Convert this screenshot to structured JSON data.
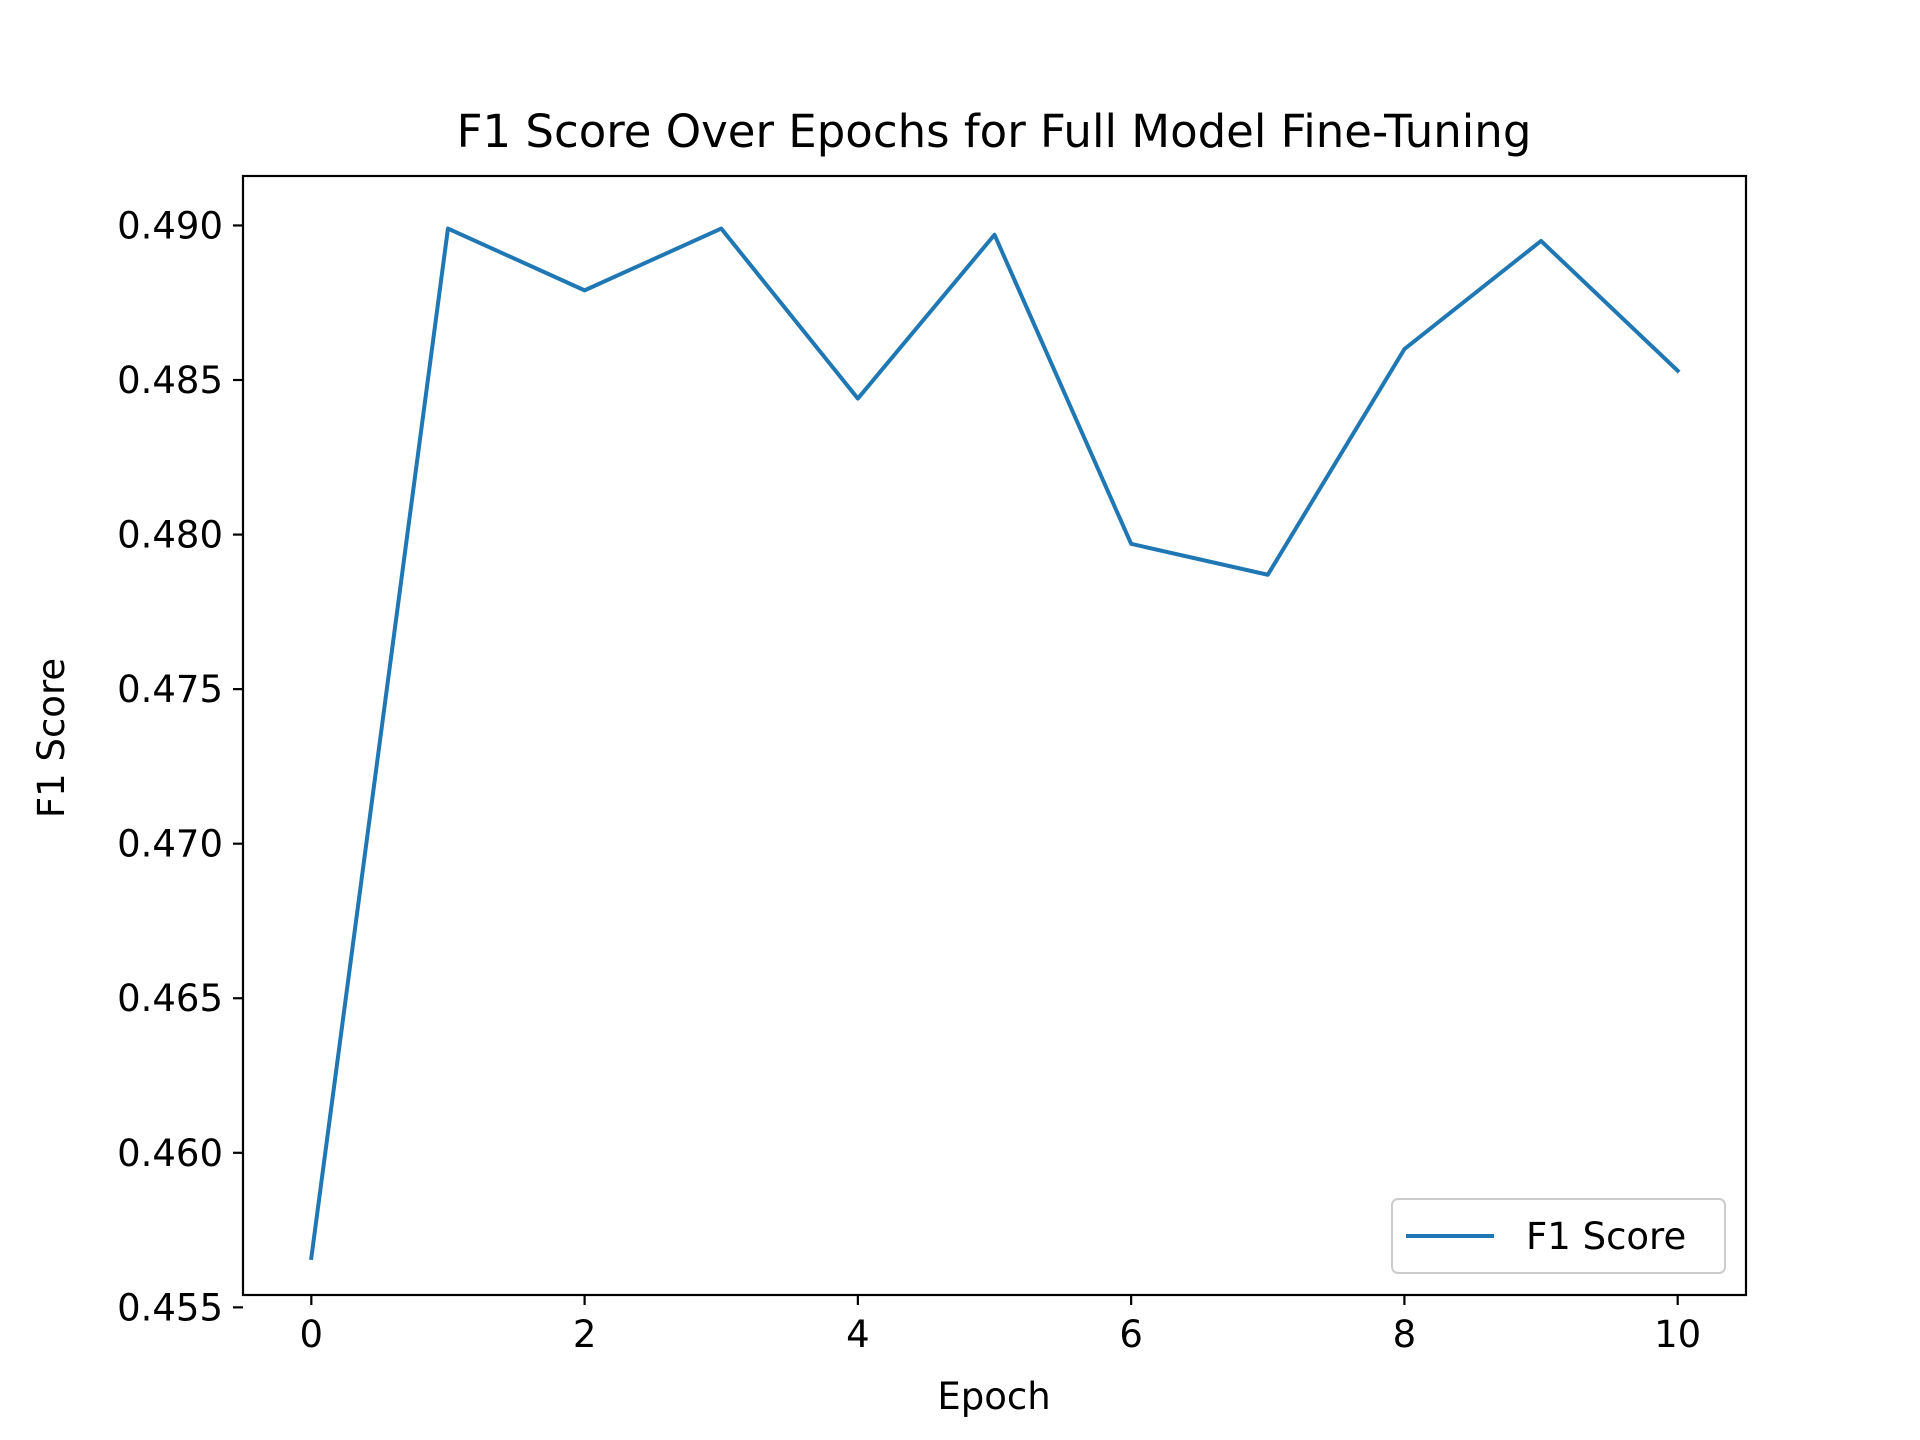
{
  "chart_data": {
    "type": "line",
    "title": "F1 Score Over Epochs for Full Model Fine-Tuning",
    "xlabel": "Epoch",
    "ylabel": "F1 Score",
    "x": [
      0,
      1,
      2,
      3,
      4,
      5,
      6,
      7,
      8,
      9,
      10
    ],
    "series": [
      {
        "name": "F1 Score",
        "color": "#1f77b4",
        "values": [
          0.4566,
          0.4899,
          0.4879,
          0.4899,
          0.4844,
          0.4897,
          0.4797,
          0.4787,
          0.486,
          0.4895,
          0.4853
        ]
      }
    ],
    "xlim": [
      -0.5,
      10.5
    ],
    "ylim": [
      0.4554,
      0.4916
    ],
    "xticks": [
      0,
      2,
      4,
      6,
      8,
      10
    ],
    "xtick_labels": [
      "0",
      "2",
      "4",
      "6",
      "8",
      "10"
    ],
    "yticks": [
      0.455,
      0.46,
      0.465,
      0.47,
      0.475,
      0.48,
      0.485,
      0.49
    ],
    "ytick_labels": [
      "0.455",
      "0.460",
      "0.465",
      "0.470",
      "0.475",
      "0.480",
      "0.485",
      "0.490"
    ],
    "grid": false,
    "legend_position": "lower-right"
  }
}
